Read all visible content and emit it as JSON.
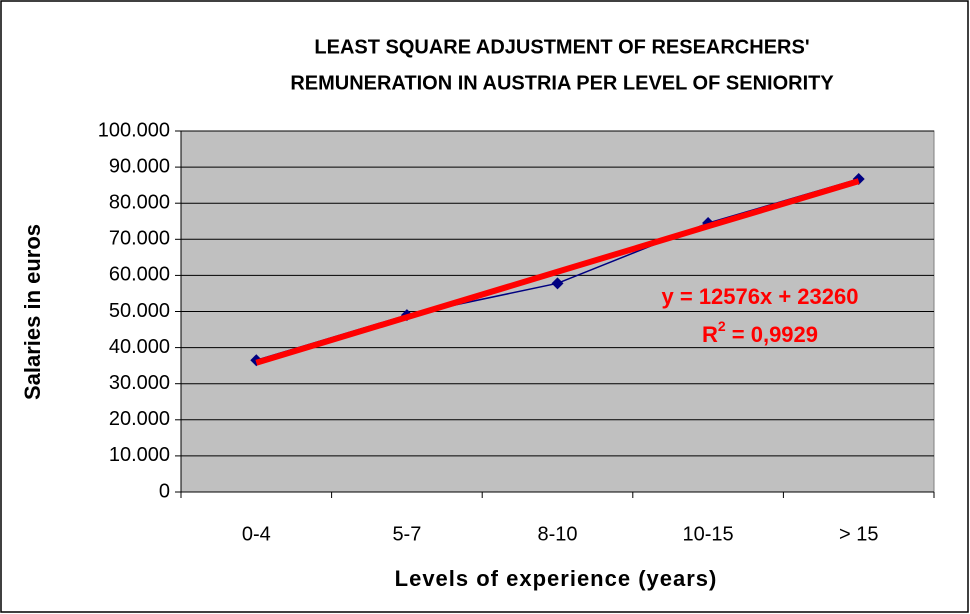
{
  "chart_data": {
    "type": "line",
    "title": [
      "LEAST SQUARE ADJUSTMENT OF RESEARCHERS'",
      "REMUNERATION IN AUSTRIA PER LEVEL OF SENIORITY"
    ],
    "x_label": "Levels of experience (years)",
    "y_label": "Salaries in euros",
    "categories": [
      "0-4",
      "5-7",
      "8-10",
      "10-15",
      "> 15"
    ],
    "series": [
      {
        "color": "#000080",
        "values": [
          36500,
          49000,
          57800,
          74500,
          86700
        ]
      }
    ],
    "trendline": {
      "color": "#ff0000",
      "values": [
        35800,
        48400,
        61000,
        73600,
        86100
      ]
    },
    "annotations": {
      "equation": "y = 12576x + 23260",
      "r2": [
        "R",
        "2",
        " = 0,9929"
      ],
      "color": "#ff0000"
    },
    "ylim": [
      0,
      100000
    ],
    "yticks": [
      0,
      {
        "value": 10000,
        "label": "10.000"
      },
      {
        "value": 20000,
        "label": "20.000"
      },
      {
        "value": 30000,
        "label": "30.000"
      },
      {
        "value": 40000,
        "label": "40.000"
      },
      {
        "value": 50000,
        "label": "50.000"
      },
      {
        "value": 60000,
        "label": "60.000"
      },
      {
        "value": 70000,
        "label": "70.000"
      },
      {
        "value": 80000,
        "label": "80.000"
      },
      {
        "value": 90000,
        "label": "90.000"
      },
      {
        "value": 100000,
        "label": "100.000"
      }
    ],
    "grid": true,
    "plot_background": "#c0c0c0"
  }
}
